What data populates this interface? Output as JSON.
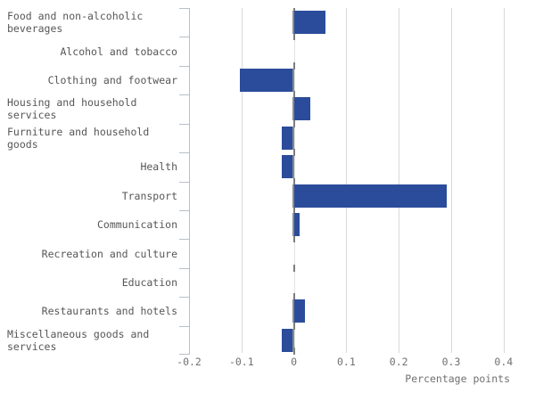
{
  "chart_data": {
    "type": "bar",
    "orientation": "horizontal",
    "title": "",
    "xlabel": "Percentage points",
    "ylabel": "",
    "xlim": [
      -0.2,
      0.45
    ],
    "grid": "vertical-light-gray",
    "legend": "none",
    "bar_color": "#2b4c9b",
    "categories": [
      "Food and non-alcoholic beverages",
      "Alcohol and tobacco",
      "Clothing and footwear",
      "Housing and household services",
      "Furniture and household goods",
      "Health",
      "Transport",
      "Communication",
      "Recreation and culture",
      "Education",
      "Restaurants and hotels",
      "Miscellaneous goods and services"
    ],
    "label_lines": [
      [
        "Food and non-alcoholic",
        "beverages"
      ],
      [
        "Alcohol and tobacco"
      ],
      [
        "Clothing and footwear"
      ],
      [
        "Housing and household",
        "services"
      ],
      [
        "Furniture and household",
        "goods"
      ],
      [
        "Health"
      ],
      [
        "Transport"
      ],
      [
        "Communication"
      ],
      [
        "Recreation and culture"
      ],
      [
        "Education"
      ],
      [
        "Restaurants and hotels"
      ],
      [
        "Miscellaneous goods and",
        "services"
      ]
    ],
    "values": [
      0.06,
      0.0,
      -0.1,
      0.03,
      -0.02,
      -0.02,
      0.29,
      0.01,
      0.0,
      0.0,
      0.02,
      -0.02
    ],
    "x_ticks": [
      "-0.2",
      "-0.1",
      "0",
      "0.1",
      "0.2",
      "0.3",
      "0.4"
    ],
    "x_tick_values": [
      -0.2,
      -0.1,
      0,
      0.1,
      0.2,
      0.3,
      0.4
    ]
  }
}
